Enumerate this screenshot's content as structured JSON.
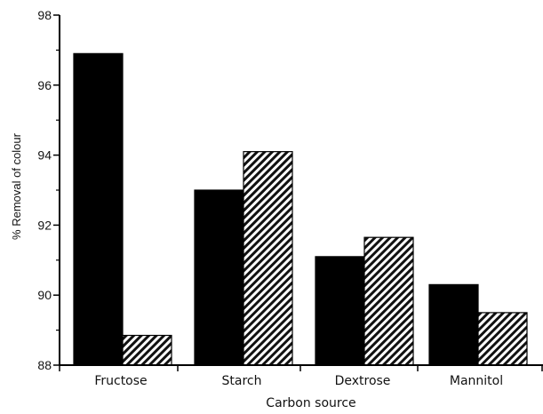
{
  "chart_data": {
    "type": "bar",
    "categories": [
      "Fructose",
      "Starch",
      "Dextrose",
      "Mannitol"
    ],
    "series": [
      {
        "values": [
          96.9,
          93.0,
          91.1,
          90.3
        ],
        "fill": "solid",
        "color": "#000000"
      },
      {
        "values": [
          88.85,
          94.1,
          91.65,
          89.5
        ],
        "fill": "diagonal-hatch",
        "color": "#000000"
      }
    ],
    "ylim": [
      88,
      98
    ],
    "yticks": [
      88,
      90,
      92,
      94,
      96,
      98
    ],
    "ylabel": "% Removal of colour",
    "xlabel": "Carbon source",
    "title": "",
    "grid": false,
    "legend": "none"
  }
}
